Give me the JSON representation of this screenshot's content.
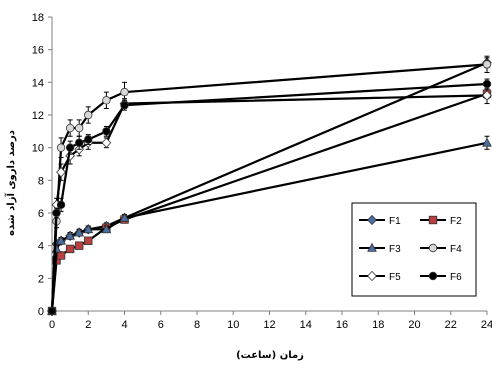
{
  "chart_data": {
    "type": "line",
    "title": "",
    "xlabel": "زمان (ساعت)",
    "ylabel": "درصد داروی آزاد شده",
    "xlim": [
      0,
      24
    ],
    "ylim": [
      0,
      18
    ],
    "x_ticks": [
      "0",
      "2",
      "4",
      "6",
      "8",
      "10",
      "12",
      "14",
      "16",
      "18",
      "20",
      "22",
      "24"
    ],
    "y_ticks": [
      "0",
      "2",
      "4",
      "6",
      "8",
      "10",
      "12",
      "14",
      "16",
      "18"
    ],
    "grid": false,
    "legend_position": "right",
    "x": [
      0,
      0.25,
      0.5,
      1,
      1.5,
      2,
      3,
      4,
      24
    ],
    "series": [
      {
        "name": "F1",
        "marker": "diamond",
        "marker_fill": "#4a6fa5",
        "line_color": "#000000",
        "values": [
          0,
          4.1,
          4.3,
          4.6,
          4.8,
          5.0,
          5.2,
          5.7,
          15.2
        ],
        "errors": [
          0,
          0.2,
          0.2,
          0.2,
          0.2,
          0.2,
          0.2,
          0.2,
          0.3
        ]
      },
      {
        "name": "F2",
        "marker": "square",
        "marker_fill": "#b84040",
        "line_color": "#000000",
        "values": [
          0,
          3.1,
          3.4,
          3.8,
          4.0,
          4.3,
          5.1,
          5.6,
          13.3
        ],
        "errors": [
          0,
          0.2,
          0.2,
          0.2,
          0.2,
          0.2,
          0.2,
          0.2,
          0.3
        ]
      },
      {
        "name": "F3",
        "marker": "triangle",
        "marker_fill": "#4a6fa5",
        "line_color": "#000000",
        "values": [
          0,
          3.8,
          4.3,
          4.6,
          4.8,
          5.0,
          5.0,
          5.7,
          10.3
        ],
        "errors": [
          0,
          0.2,
          0.2,
          0.2,
          0.2,
          0.2,
          0.2,
          0.2,
          0.4
        ]
      },
      {
        "name": "F4",
        "marker": "circle",
        "marker_fill": "#d8d8d8",
        "line_color": "#000000",
        "values": [
          0,
          5.5,
          10.0,
          11.2,
          11.2,
          12.0,
          12.9,
          13.4,
          15.1
        ],
        "errors": [
          0,
          0.4,
          0.6,
          0.5,
          0.5,
          0.5,
          0.5,
          0.6,
          0.5
        ]
      },
      {
        "name": "F5",
        "marker": "diamond",
        "marker_fill": "#ffffff",
        "line_color": "#000000",
        "values": [
          0,
          6.5,
          8.5,
          9.5,
          9.9,
          10.3,
          10.3,
          12.7,
          13.2
        ],
        "errors": [
          0,
          0.4,
          0.5,
          0.5,
          0.4,
          0.4,
          0.3,
          0.3,
          0.5
        ]
      },
      {
        "name": "F6",
        "marker": "circle",
        "marker_fill": "#000000",
        "line_color": "#000000",
        "values": [
          0,
          6.0,
          6.5,
          10.0,
          10.3,
          10.5,
          11.0,
          12.6,
          13.9
        ],
        "errors": [
          0,
          0.3,
          0.4,
          0.4,
          0.4,
          0.3,
          0.3,
          0.3,
          0.3
        ]
      }
    ]
  }
}
